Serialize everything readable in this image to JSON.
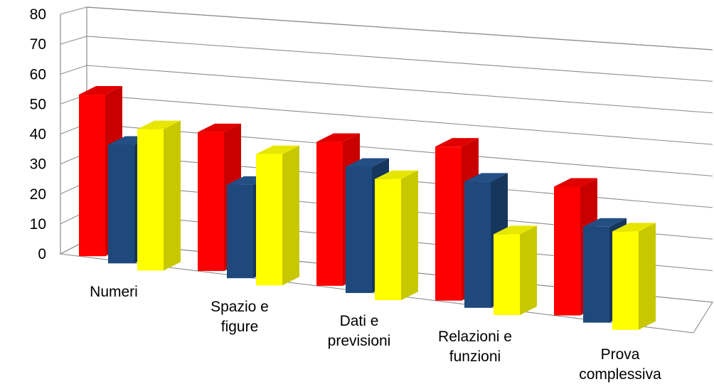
{
  "chart_data": {
    "type": "bar",
    "title": "",
    "xlabel": "",
    "ylabel": "",
    "ylim": [
      0,
      80
    ],
    "y_ticks": [
      "0",
      "10",
      "20",
      "30",
      "40",
      "50",
      "60",
      "70",
      "80"
    ],
    "grid": true,
    "legend": "none",
    "categories": [
      [
        "Numeri"
      ],
      [
        "Spazio e",
        "figure"
      ],
      [
        "Dati e",
        "previsioni"
      ],
      [
        "Relazioni e",
        "funzioni"
      ],
      [
        "Prova",
        "complessiva"
      ]
    ],
    "series": [
      {
        "color": "#ff0000",
        "side_color": "#c80000",
        "top_color": "#e00000",
        "values": [
          64,
          55,
          57,
          61,
          51
        ]
      },
      {
        "color": "#1f497d",
        "side_color": "#17365d",
        "top_color": "#234f85",
        "values": [
          47,
          37,
          50,
          50,
          38
        ]
      },
      {
        "color": "#ffff00",
        "side_color": "#c8c800",
        "top_color": "#e6e600",
        "values": [
          56,
          52,
          48,
          32,
          39
        ]
      }
    ]
  }
}
